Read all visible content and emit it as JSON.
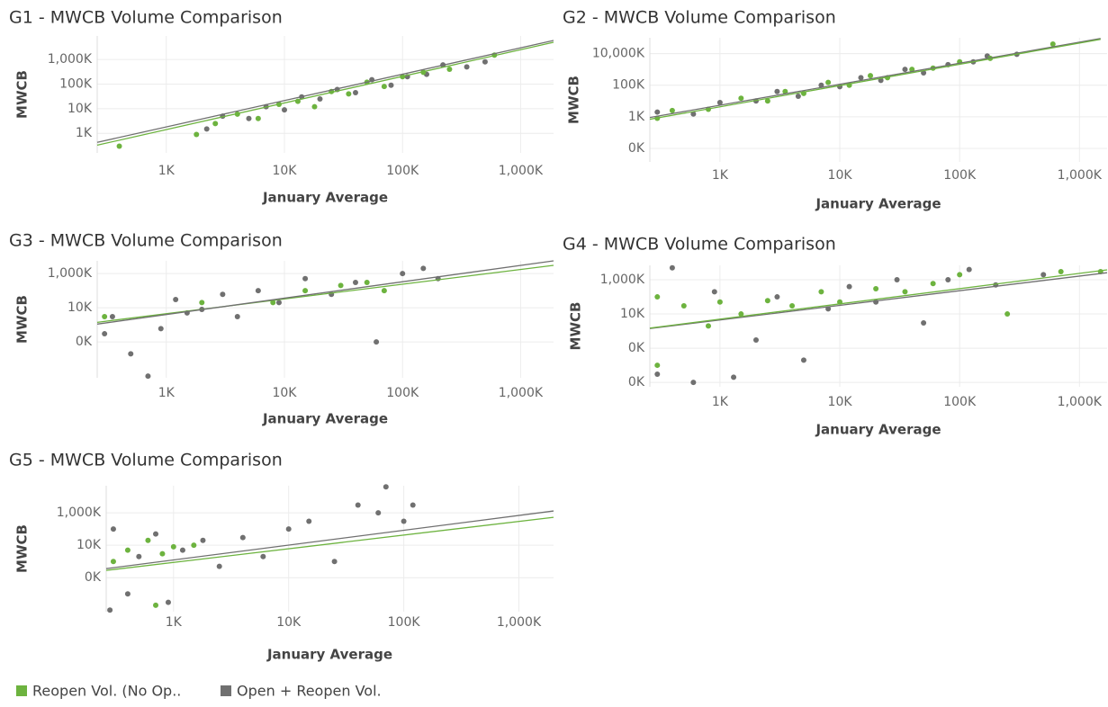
{
  "chart_data": [
    {
      "type": "scatter",
      "title": "G1 - MWCB Volume Comparison",
      "x_label": "January Average",
      "y_label": "MWCB",
      "log_x": true,
      "log_y": true,
      "grid": true,
      "xlim": [
        260,
        1900000
      ],
      "ylim": [
        160,
        9000000
      ],
      "xticks": [
        {
          "value": 1000,
          "label": "1K"
        },
        {
          "value": 10000,
          "label": "10K"
        },
        {
          "value": 100000,
          "label": "100K"
        },
        {
          "value": 1000000,
          "label": "1,000K"
        }
      ],
      "yticks": [
        {
          "value": 1000000,
          "label": "1,000K"
        },
        {
          "value": 100000,
          "label": "100K"
        },
        {
          "value": 10000,
          "label": "10K"
        },
        {
          "value": 1000,
          "label": "1K"
        }
      ],
      "series": [
        {
          "color": "#707070",
          "x": [
            2200,
            3000,
            5000,
            7000,
            10000,
            14000,
            20000,
            28000,
            40000,
            55000,
            80000,
            110000,
            160000,
            220000,
            350000,
            500000
          ],
          "y": [
            1500,
            5000,
            4000,
            12000,
            9000,
            30000,
            25000,
            60000,
            45000,
            150000,
            90000,
            200000,
            250000,
            600000,
            500000,
            800000
          ],
          "trend": {
            "x": [
              260,
              1900000
            ],
            "y": [
              430,
              5900000
            ]
          }
        },
        {
          "color": "#6db33f",
          "x": [
            400,
            1800,
            2600,
            4000,
            6000,
            9000,
            13000,
            18000,
            25000,
            35000,
            50000,
            70000,
            100000,
            150000,
            250000,
            600000
          ],
          "y": [
            300,
            900,
            2500,
            6000,
            4000,
            15000,
            20000,
            12000,
            50000,
            40000,
            120000,
            80000,
            200000,
            300000,
            400000,
            1500000
          ],
          "trend": {
            "x": [
              260,
              1900000
            ],
            "y": [
              330,
              5000000
            ]
          }
        }
      ]
    },
    {
      "type": "scatter",
      "title": "G2 - MWCB Volume Comparison",
      "x_label": "January Average",
      "y_label": "MWCB",
      "log_x": true,
      "log_y": true,
      "grid": true,
      "xlim": [
        260,
        1700000
      ],
      "ylim": [
        1.4,
        100000000
      ],
      "xticks": [
        {
          "value": 1000,
          "label": "1K"
        },
        {
          "value": 10000,
          "label": "10K"
        },
        {
          "value": 100000,
          "label": "100K"
        },
        {
          "value": 1000000,
          "label": "1,000K"
        }
      ],
      "yticks": [
        {
          "value": 10000000,
          "label": "10,000K"
        },
        {
          "value": 100000,
          "label": "100K"
        },
        {
          "value": 1000,
          "label": "1K"
        },
        {
          "value": 10,
          "label": "0K"
        }
      ],
      "series": [
        {
          "color": "#707070",
          "x": [
            300,
            600,
            1000,
            2000,
            3000,
            4500,
            7000,
            10000,
            15000,
            22000,
            35000,
            50000,
            80000,
            130000,
            170000,
            300000
          ],
          "y": [
            2000,
            1500,
            8000,
            10000,
            40000,
            20000,
            100000,
            80000,
            300000,
            200000,
            1000000,
            600000,
            2000000,
            3000000,
            7000000,
            9000000
          ],
          "trend": {
            "x": [
              260,
              1500000
            ],
            "y": [
              900,
              90000000
            ]
          }
        },
        {
          "color": "#6db33f",
          "x": [
            300,
            400,
            800,
            1500,
            2500,
            3500,
            5000,
            8000,
            12000,
            18000,
            25000,
            40000,
            60000,
            100000,
            180000,
            600000
          ],
          "y": [
            800,
            2500,
            3000,
            15000,
            10000,
            40000,
            30000,
            150000,
            100000,
            400000,
            300000,
            1000000,
            1200000,
            3000000,
            5000000,
            40000000
          ],
          "trend": {
            "x": [
              260,
              1500000
            ],
            "y": [
              700,
              80000000
            ]
          }
        }
      ]
    },
    {
      "type": "scatter",
      "title": "G3 - MWCB Volume Comparison",
      "x_label": "January Average",
      "y_label": "MWCB",
      "log_x": true,
      "log_y": true,
      "grid": true,
      "xlim": [
        260,
        1900000
      ],
      "ylim": [
        0.8,
        5500000
      ],
      "xticks": [
        {
          "value": 1000,
          "label": "1K"
        },
        {
          "value": 10000,
          "label": "10K"
        },
        {
          "value": 100000,
          "label": "100K"
        },
        {
          "value": 1000000,
          "label": "1,000K"
        }
      ],
      "yticks": [
        {
          "value": 1000000,
          "label": "1,000K"
        },
        {
          "value": 10000,
          "label": "10K"
        },
        {
          "value": 100,
          "label": "0K"
        }
      ],
      "series": [
        {
          "color": "#6db33f",
          "x": [
            300,
            2000,
            8000,
            15000,
            30000,
            50000,
            70000
          ],
          "y": [
            3000,
            20000,
            20000,
            100000,
            200000,
            300000,
            100000
          ],
          "trend": {
            "x": [
              260,
              1900000
            ],
            "y": [
              1400,
              3000000
            ]
          }
        },
        {
          "color": "#707070",
          "x": [
            300,
            350,
            500,
            700,
            900,
            1200,
            1500,
            2000,
            3000,
            4000,
            6000,
            9000,
            15000,
            25000,
            40000,
            60000,
            100000,
            150000,
            200000
          ],
          "y": [
            300,
            3000,
            20,
            1,
            600,
            30000,
            5000,
            8000,
            60000,
            3000,
            100000,
            20000,
            500000,
            60000,
            300000,
            100,
            1000000,
            2000000,
            500000
          ],
          "trend": {
            "x": [
              260,
              1900000
            ],
            "y": [
              1100,
              5500000
            ]
          }
        }
      ]
    },
    {
      "type": "scatter",
      "title": "G4 - MWCB Volume Comparison",
      "x_label": "January Average",
      "y_label": "MWCB",
      "log_x": true,
      "log_y": true,
      "grid": true,
      "xlim": [
        260,
        1700000
      ],
      "ylim": [
        0.55,
        7000000
      ],
      "xticks": [
        {
          "value": 1000,
          "label": "1K"
        },
        {
          "value": 10000,
          "label": "10K"
        },
        {
          "value": 100000,
          "label": "100K"
        },
        {
          "value": 1000000,
          "label": "1,000K"
        }
      ],
      "yticks": [
        {
          "value": 1000000,
          "label": "1,000K"
        },
        {
          "value": 10000,
          "label": "10K"
        },
        {
          "value": 100,
          "label": "0K"
        },
        {
          "value": 1,
          "label": "0K"
        }
      ],
      "series": [
        {
          "color": "#707070",
          "x": [
            300,
            400,
            600,
            900,
            1300,
            2000,
            3000,
            5000,
            8000,
            12000,
            20000,
            30000,
            50000,
            80000,
            120000,
            200000,
            500000
          ],
          "y": [
            3,
            5000000,
            1,
            200000,
            2,
            300,
            100000,
            20,
            20000,
            400000,
            50000,
            1000000,
            3000,
            1000000,
            4000000,
            500000,
            2000000
          ],
          "trend": {
            "x": [
              260,
              1700000
            ],
            "y": [
              1400,
              2600000
            ]
          }
        },
        {
          "color": "#6db33f",
          "x": [
            300,
            300,
            500,
            800,
            1000,
            1500,
            2500,
            4000,
            7000,
            10000,
            20000,
            35000,
            60000,
            100000,
            250000,
            700000,
            1500000
          ],
          "y": [
            100000,
            10,
            30000,
            2000,
            50000,
            10000,
            60000,
            30000,
            200000,
            50000,
            300000,
            200000,
            600000,
            2000000,
            10000,
            3000000,
            3000000
          ],
          "trend": {
            "x": [
              260,
              1700000
            ],
            "y": [
              1500,
              3800000
            ]
          }
        }
      ]
    },
    {
      "type": "scatter",
      "title": "G5 - MWCB Volume Comparison",
      "x_label": "January Average",
      "y_label": "MWCB",
      "log_x": true,
      "log_y": true,
      "grid": true,
      "xlim": [
        260,
        2000000
      ],
      "ylim": [
        0.8,
        47000000
      ],
      "xticks": [
        {
          "value": 1000,
          "label": "1K"
        },
        {
          "value": 10000,
          "label": "10K"
        },
        {
          "value": 100000,
          "label": "100K"
        },
        {
          "value": 1000000,
          "label": "1,000K"
        }
      ],
      "yticks": [
        {
          "value": 1000000,
          "label": "1,000K"
        },
        {
          "value": 10000,
          "label": "10K"
        },
        {
          "value": 100,
          "label": "0K"
        }
      ],
      "series": [
        {
          "color": "#707070",
          "x": [
            280,
            300,
            400,
            500,
            700,
            900,
            1200,
            1800,
            2500,
            4000,
            6000,
            10000,
            15000,
            25000,
            40000,
            60000,
            70000,
            100000,
            120000
          ],
          "y": [
            1,
            100000,
            10,
            2000,
            50000,
            3,
            5000,
            20000,
            500,
            30000,
            2000,
            100000,
            300000,
            1000,
            3000000,
            1000000,
            40000000,
            300000,
            3000000
          ],
          "trend": {
            "x": [
              260,
              2000000
            ],
            "y": [
              360,
              1300000
            ]
          }
        },
        {
          "color": "#6db33f",
          "x": [
            300,
            400,
            600,
            800,
            1000,
            1500,
            700
          ],
          "y": [
            1000,
            5000,
            20000,
            3000,
            8000,
            10000,
            2
          ],
          "trend": {
            "x": [
              260,
              2000000
            ],
            "y": [
              280,
              530000
            ]
          }
        }
      ]
    }
  ],
  "legend": [
    {
      "name": "Reopen Vol. (No Op..",
      "color": "#6db33f"
    },
    {
      "name": "Open + Reopen Vol.",
      "color": "#707070"
    }
  ]
}
